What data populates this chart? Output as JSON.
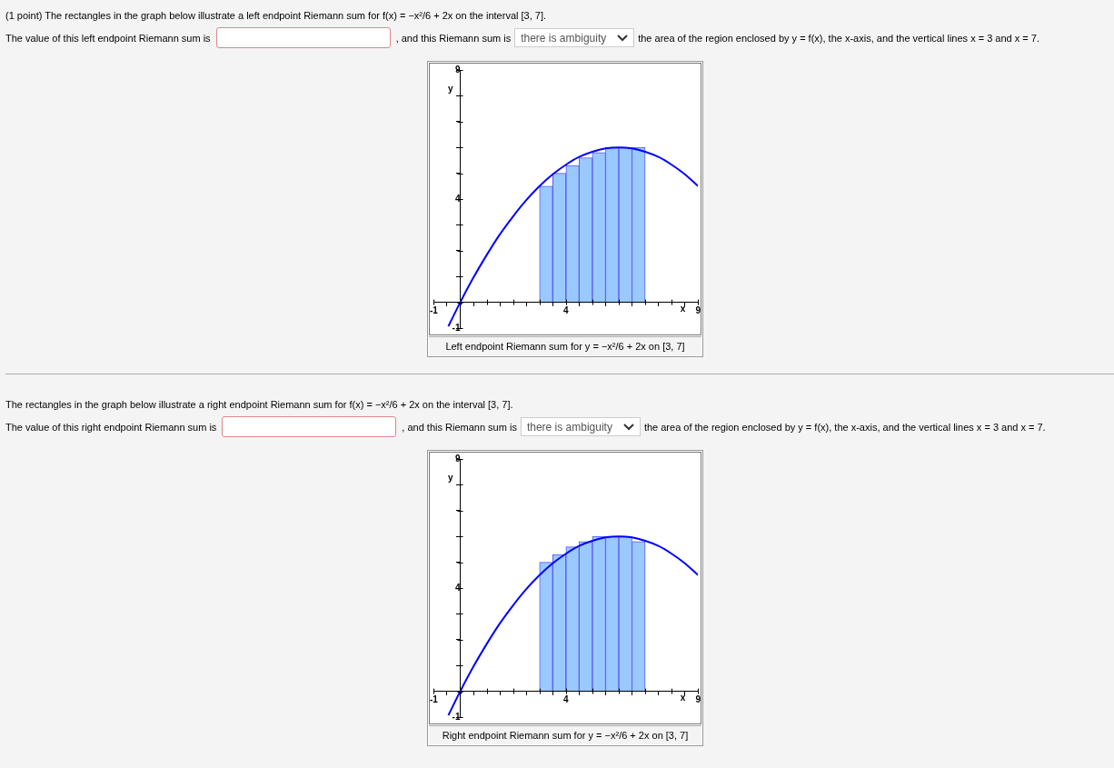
{
  "chart_data": [
    {
      "type": "histogram",
      "title": "(1 point) The rectangles in the graph below illustrate a left endpoint Riemann sum for f(x) = −x²/6 + 2x on the interval [3, 7].",
      "xlabel": "x",
      "ylabel": "y",
      "annotations": [
        "The value of this left endpoint Riemann sum is",
        ", and this Riemann sum is",
        "there is ambiguity",
        "the area of the region enclosed by y = f(x), the x-axis, and the vertical lines x = 3 and x = 7.",
        "Left endpoint Riemann sum for y = −x²/6 + 2x on [3, 7]"
      ],
      "xlim": [
        -1,
        9
      ],
      "ylim": [
        -1,
        9
      ],
      "xticks": [
        -1,
        {
          "value": 0,
          "label": null
        },
        {
          "value": 1,
          "label": null
        },
        {
          "value": 2,
          "label": null
        },
        {
          "value": 3,
          "label": null
        },
        4,
        {
          "value": 5,
          "label": null
        },
        {
          "value": 6,
          "label": null
        },
        {
          "value": 7,
          "label": null
        },
        {
          "value": 8,
          "label": null
        },
        9
      ],
      "yticks": [
        -1,
        {
          "value": 0,
          "label": null
        },
        {
          "value": 1,
          "label": null
        },
        {
          "value": 2,
          "label": null
        },
        {
          "value": 3,
          "label": null
        },
        4,
        {
          "value": 5,
          "label": null
        },
        {
          "value": 6,
          "label": null
        },
        {
          "value": 7,
          "label": null
        },
        {
          "value": 8,
          "label": null
        },
        9
      ],
      "series": [
        {
          "type": "histogram",
          "color": "#99c9ff",
          "bins": [
            3,
            3.5,
            4,
            4.5,
            5,
            5.5,
            6,
            6.5,
            7
          ],
          "values": [
            4.5,
            5,
            5.3,
            5.6,
            5.8,
            6,
            6,
            6
          ]
        },
        {
          "type": "line",
          "color": "#0000ff",
          "x": [
            -0.45,
            0,
            0.5,
            1,
            1.5,
            2,
            2.5,
            3,
            3.5,
            4,
            4.5,
            5,
            5.5,
            6,
            6.5,
            7,
            7.5,
            8,
            8.5,
            9
          ],
          "values": [
            -0.93,
            0,
            0.96,
            1.83,
            2.63,
            3.33,
            3.96,
            4.5,
            4.96,
            5.33,
            5.63,
            5.83,
            5.96,
            6,
            5.96,
            5.83,
            5.63,
            5.33,
            4.96,
            4.5
          ]
        }
      ]
    },
    {
      "type": "histogram",
      "title": "The rectangles in the graph below illustrate a right endpoint Riemann sum for f(x) = −x²/6 + 2x on the interval [3, 7].",
      "xlabel": "x",
      "ylabel": "y",
      "annotations": [
        "The value of this right endpoint Riemann sum is",
        ", and this Riemann sum is",
        "there is ambiguity",
        "the area of the region enclosed by y = f(x), the x-axis, and the vertical lines x = 3 and x = 7.",
        "Right endpoint Riemann sum for y = −x²/6 + 2x on [3, 7]"
      ],
      "xlim": [
        -1,
        9
      ],
      "ylim": [
        -1,
        9
      ],
      "xticks": [
        -1,
        {
          "value": 0,
          "label": null
        },
        {
          "value": 1,
          "label": null
        },
        {
          "value": 2,
          "label": null
        },
        {
          "value": 3,
          "label": null
        },
        4,
        {
          "value": 5,
          "label": null
        },
        {
          "value": 6,
          "label": null
        },
        {
          "value": 7,
          "label": null
        },
        {
          "value": 8,
          "label": null
        },
        9
      ],
      "yticks": [
        -1,
        {
          "value": 0,
          "label": null
        },
        {
          "value": 1,
          "label": null
        },
        {
          "value": 2,
          "label": null
        },
        {
          "value": 3,
          "label": null
        },
        4,
        {
          "value": 5,
          "label": null
        },
        {
          "value": 6,
          "label": null
        },
        {
          "value": 7,
          "label": null
        },
        {
          "value": 8,
          "label": null
        },
        9
      ],
      "series": [
        {
          "type": "histogram",
          "color": "#99c9ff",
          "bins": [
            3,
            3.5,
            4,
            4.5,
            5,
            5.5,
            6,
            6.5,
            7
          ],
          "values": [
            5,
            5.3,
            5.6,
            5.8,
            6,
            6,
            6,
            5.8
          ]
        },
        {
          "type": "line",
          "color": "#0000ff",
          "x": [
            -0.45,
            0,
            0.5,
            1,
            1.5,
            2,
            2.5,
            3,
            3.5,
            4,
            4.5,
            5,
            5.5,
            6,
            6.5,
            7,
            7.5,
            8,
            8.5,
            9
          ],
          "values": [
            -0.93,
            0,
            0.96,
            1.83,
            2.63,
            3.33,
            3.96,
            4.5,
            4.96,
            5.33,
            5.63,
            5.83,
            5.96,
            6,
            5.96,
            5.83,
            5.63,
            5.33,
            4.96,
            4.5
          ]
        }
      ]
    }
  ]
}
